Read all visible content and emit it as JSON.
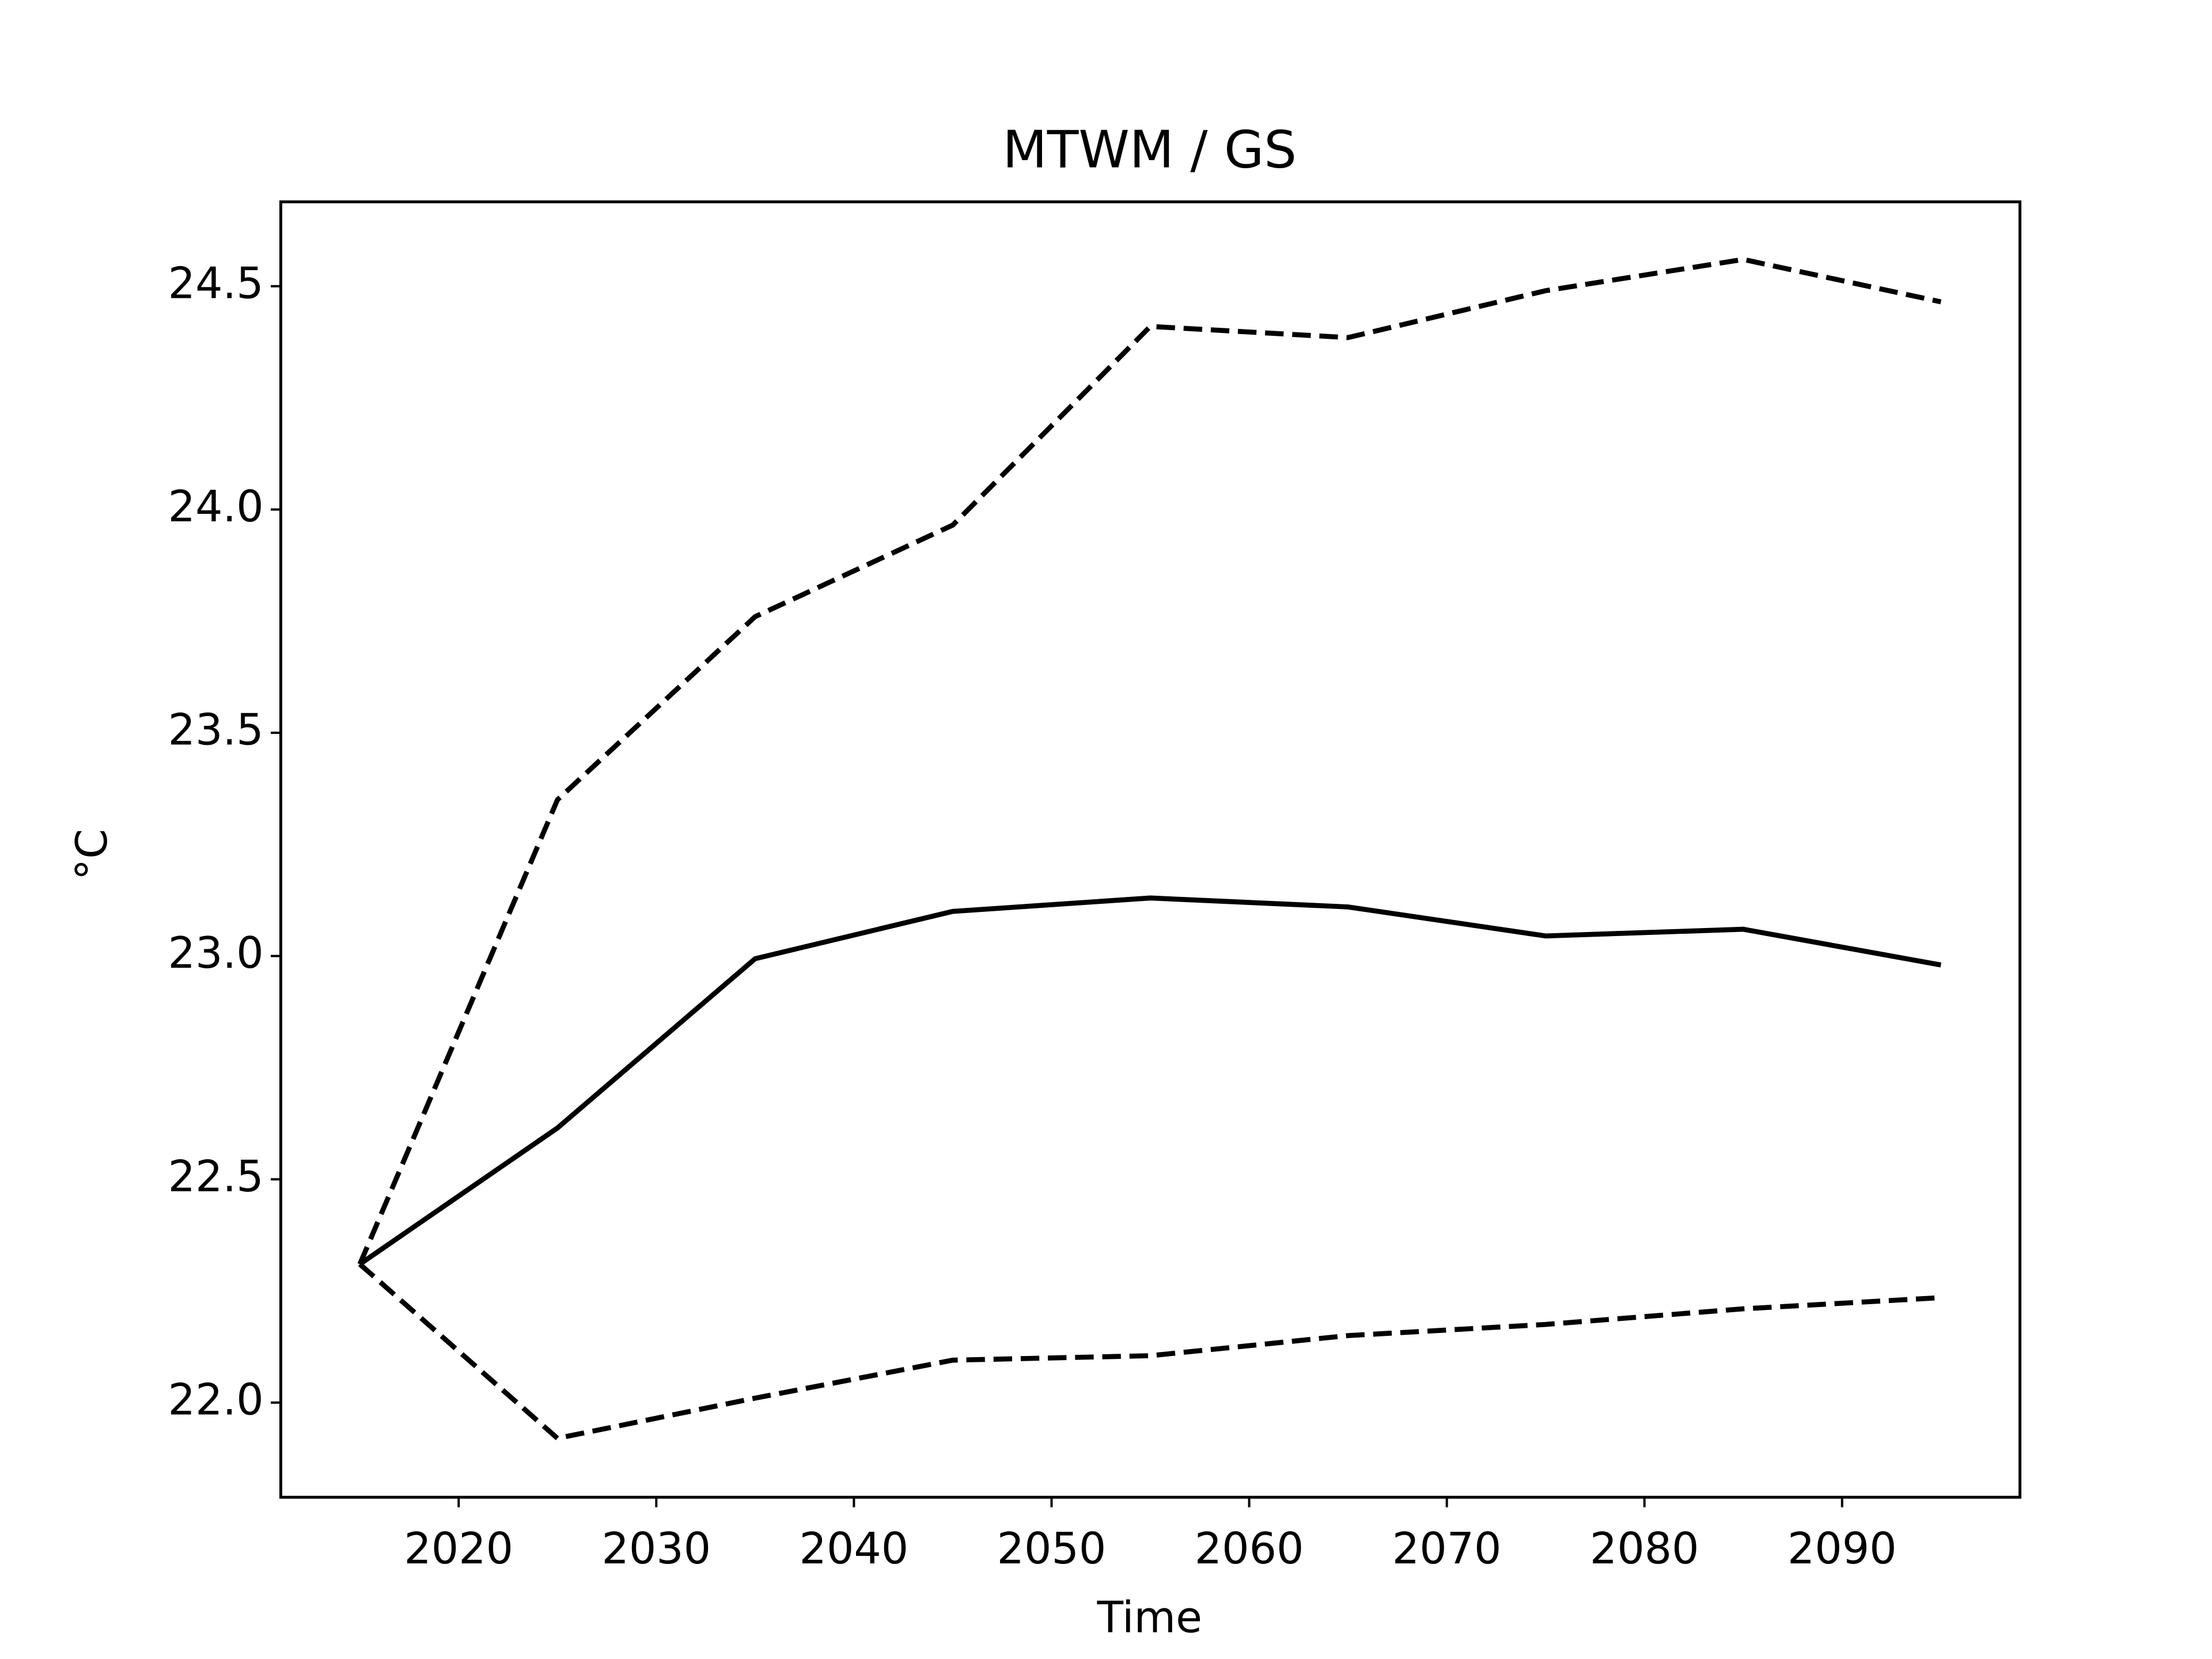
{
  "chart_data": {
    "type": "line",
    "title": "MTWM / GS",
    "xlabel": "Time",
    "ylabel": "°C",
    "x": [
      2015,
      2025,
      2035,
      2045,
      2055,
      2065,
      2075,
      2085,
      2095
    ],
    "series": [
      {
        "color": "#000000",
        "dashed": false,
        "values": [
          22.31,
          22.615,
          22.994,
          23.1,
          23.13,
          23.11,
          23.045,
          23.06,
          22.98
        ]
      },
      {
        "color": "#000000",
        "dashed": true,
        "values": [
          22.31,
          23.35,
          23.76,
          23.965,
          24.41,
          24.385,
          24.49,
          24.56,
          24.465
        ]
      },
      {
        "color": "#000000",
        "dashed": true,
        "values": [
          22.31,
          21.92,
          22.01,
          22.095,
          22.105,
          22.15,
          22.175,
          22.21,
          22.235
        ]
      }
    ],
    "xlim": [
      2011,
      2099
    ],
    "xticks": [
      2020,
      2030,
      2040,
      2050,
      2060,
      2070,
      2080,
      2090
    ],
    "ylim": [
      21.788,
      24.689
    ],
    "yticks": [
      {
        "value": 22,
        "label": "22.0"
      },
      {
        "value": 22.5,
        "label": "22.5"
      },
      {
        "value": 23,
        "label": "23.0"
      },
      {
        "value": 23.5,
        "label": "23.5"
      },
      {
        "value": 24,
        "label": "24.0"
      },
      {
        "value": 24.5,
        "label": "24.5"
      }
    ],
    "grid": false
  }
}
